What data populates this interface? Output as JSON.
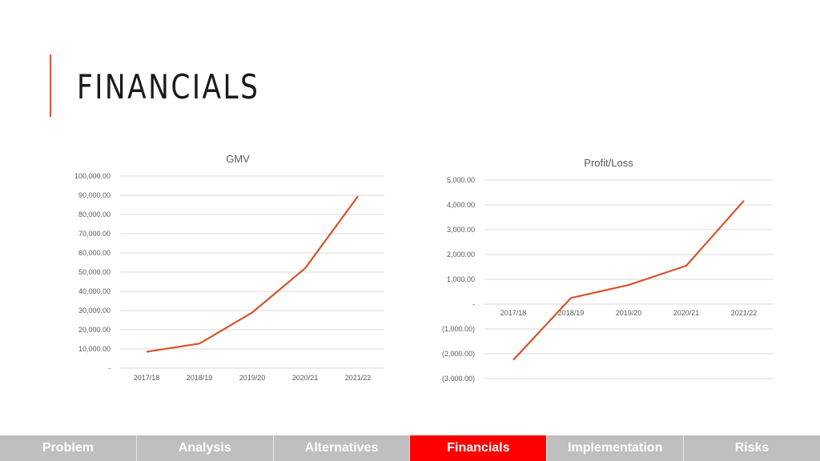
{
  "slide": {
    "title": "FINANCIALS"
  },
  "colors": {
    "accent": "#e0533a",
    "line": "#d9512c",
    "grid": "#d9d9d9",
    "nav_bg": "#bfbfbf",
    "nav_active": "#ff0000"
  },
  "nav": {
    "tabs": [
      {
        "label": "Problem",
        "active": false
      },
      {
        "label": "Analysis",
        "active": false
      },
      {
        "label": "Alternatives",
        "active": false
      },
      {
        "label": "Financials",
        "active": true
      },
      {
        "label": "Implementation",
        "active": false
      },
      {
        "label": "Risks",
        "active": false
      }
    ]
  },
  "chart_data": [
    {
      "id": "gmv",
      "type": "line",
      "title": "GMV",
      "categories": [
        "2017/18",
        "2018/19",
        "2019/20",
        "2020/21",
        "2021/22"
      ],
      "series": [
        {
          "values": [
            8500,
            12800,
            29000,
            52000,
            89500
          ]
        }
      ],
      "ylim": [
        0,
        100000
      ],
      "yticks": [
        0,
        10000,
        20000,
        30000,
        40000,
        50000,
        60000,
        70000,
        80000,
        90000,
        100000
      ],
      "ytick_labels": [
        "-",
        "10,000.00",
        "20,000.00",
        "30,000.00",
        "40,000.00",
        "50,000.00",
        "60,000.00",
        "70,000.00",
        "80,000.00",
        "90,000.00",
        "100,000.00"
      ],
      "grid": true,
      "legend": "none"
    },
    {
      "id": "pl",
      "type": "line",
      "title": "Profit/Loss",
      "categories": [
        "2017/18",
        "2018/19",
        "2019/20",
        "2020/21",
        "2021/22"
      ],
      "series": [
        {
          "values": [
            -2250,
            250,
            770,
            1550,
            4170
          ]
        }
      ],
      "ylim": [
        -3000,
        5000
      ],
      "yticks": [
        -3000,
        -2000,
        -1000,
        0,
        1000,
        2000,
        3000,
        4000,
        5000
      ],
      "ytick_labels": [
        "(3,000.00)",
        "(2,000.00)",
        "(1,000.00)",
        "-",
        "1,000.00",
        "2,000.00",
        "3,000.00",
        "4,000.00",
        "5,000.00"
      ],
      "grid": true,
      "legend": "none"
    }
  ]
}
